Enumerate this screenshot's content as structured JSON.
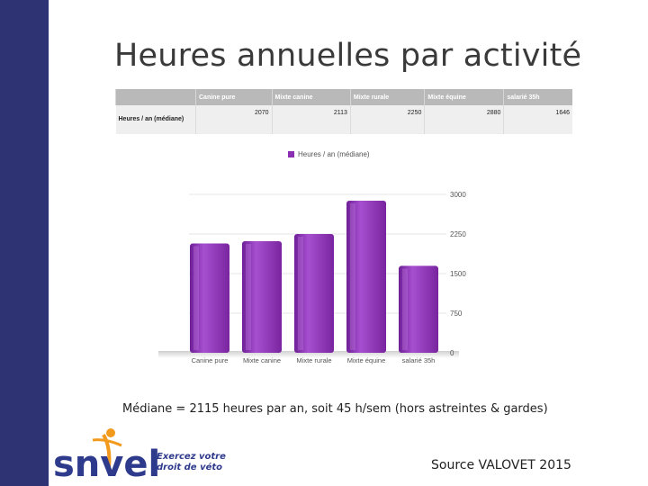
{
  "slide": {
    "title": "Heures annuelles par activité",
    "caption": "Médiane = 2115 heures par an, soit 45 h/sem (hors astreintes & gardes)",
    "source": "Source VALOVET 2015"
  },
  "table": {
    "headers": [
      "",
      "Canine pure",
      "Mixte canine",
      "Mixte rurale",
      "Mixte équine",
      "salarié 35h"
    ],
    "row_label": "Heures / an (médiane)",
    "row_values": [
      "2070",
      "2113",
      "2250",
      "2880",
      "1646"
    ]
  },
  "logo": {
    "name": "snvel",
    "tagline_line1": "Exercez votre",
    "tagline_line2": "droit de véto"
  },
  "colors": {
    "sidebar": "#2e3473",
    "bar": "#8a2fb3",
    "bar_light": "#a64fd0",
    "logo_blue": "#2e3a8c",
    "logo_orange": "#f29a1e"
  },
  "chart_data": {
    "type": "bar",
    "categories": [
      "Canine pure",
      "Mixte canine",
      "Mixte rurale",
      "Mixte équine",
      "salarié 35h"
    ],
    "series": [
      {
        "name": "Heures / an (médiane)",
        "values": [
          2070,
          2113,
          2250,
          2880,
          1646
        ]
      }
    ],
    "ylim": [
      0,
      3000
    ],
    "yticks": [
      "0",
      "750",
      "1500",
      "2250",
      "3000"
    ],
    "legend": "top",
    "grid": true
  }
}
